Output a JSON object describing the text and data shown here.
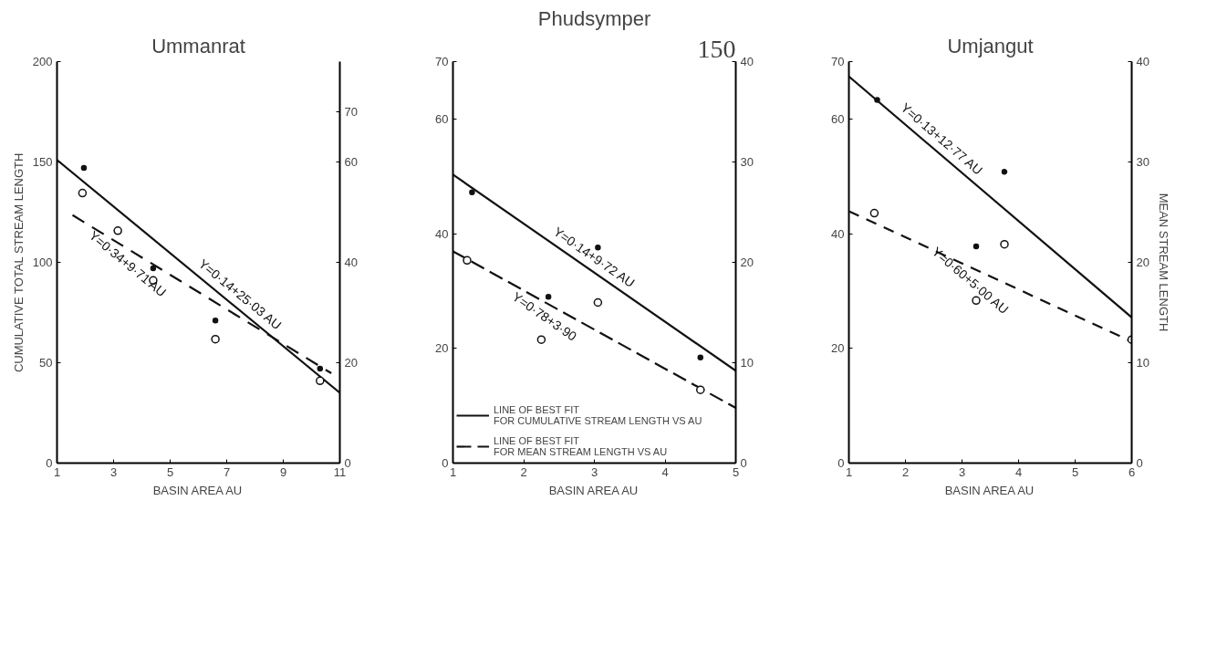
{
  "chart_data": [
    {
      "type": "scatter",
      "title": "Ummanrat",
      "xlabel": "BASIN AREA AU",
      "ylabel": "CUMULATIVE TOTAL STREAM LENGTH",
      "xlim": [
        1,
        11
      ],
      "xticks": [
        1,
        3,
        5,
        7,
        9,
        11
      ],
      "ylim": [
        0,
        200
      ],
      "yticks": [
        0,
        50,
        100,
        150,
        200
      ],
      "y2lim": [
        0,
        80
      ],
      "y2ticks": [
        0,
        20,
        40,
        60,
        70
      ],
      "grid": false,
      "legend": false,
      "annotations": [
        {
          "text": "Y=0·14+25·03 AU",
          "x": 7.2,
          "y": 79.1
        },
        {
          "text": "Y=0·34+9·71 AU",
          "x": 3.8,
          "y": 104.1
        }
      ],
      "series": [
        {
          "type": "line",
          "x": [
            1,
            11
          ],
          "values": [
            151,
            35
          ],
          "color": "#111111",
          "line_style": "solid",
          "marker": "none"
        },
        {
          "type": "line",
          "axis": "y2",
          "x": [
            1.55,
            10.7
          ],
          "values": [
            49.4,
            17.9
          ],
          "color": "#111111",
          "line_style": "dashed",
          "marker": "none"
        },
        {
          "type": "scatter",
          "x": [
            1.95,
            4.4,
            6.6,
            10.3
          ],
          "values": [
            147,
            97,
            71,
            47
          ],
          "color": "#111111",
          "marker": "circle"
        },
        {
          "type": "scatter",
          "axis": "y2",
          "x": [
            1.9,
            3.15,
            4.4,
            6.6,
            10.3
          ],
          "values": [
            53.8,
            46.3,
            36.4,
            24.7,
            16.4
          ],
          "color": "#111111",
          "marker": "circle"
        }
      ]
    },
    {
      "type": "scatter",
      "title": "Phudsymper",
      "xlabel": "BASIN AREA AU",
      "xlim": [
        1,
        5
      ],
      "xticks": [
        1,
        2,
        3,
        4,
        5
      ],
      "ylim": [
        0,
        70
      ],
      "yticks": [
        0,
        20,
        40,
        60,
        70
      ],
      "y2lim": [
        0,
        40
      ],
      "y2ticks": [
        0,
        10,
        20,
        30,
        40
      ],
      "grid": false,
      "legend": "bottom left",
      "annotations": [
        "150",
        {
          "text": "Y=0·14+9·72 AU",
          "x": 2.9,
          "y": 34.05
        },
        {
          "text": "Y=0·78+3·90",
          "x": 2.4,
          "y": 27.4
        }
      ],
      "series": [
        {
          "type": "line",
          "name": "LINE OF BEST FIT FOR CUMULATIVE STREAM LENGTH VS AU",
          "x": [
            1,
            5
          ],
          "values": [
            50.3,
            16.1
          ],
          "color": "#111111",
          "line_style": "solid",
          "marker": "none"
        },
        {
          "type": "line",
          "name": "LINE OF BEST FIT FOR MEAN STREAM LENGTH VS AU",
          "axis": "y2",
          "x": [
            1,
            5
          ],
          "values": [
            21.1,
            5.5
          ],
          "color": "#111111",
          "line_style": "dashed",
          "marker": "none"
        },
        {
          "type": "scatter",
          "x": [
            1.27,
            2.35,
            3.05,
            4.5
          ],
          "values": [
            47.2,
            29,
            37.6,
            18.4
          ],
          "color": "#111111",
          "marker": "circle"
        },
        {
          "type": "scatter",
          "axis": "y2",
          "x": [
            1.2,
            2.25,
            3.05,
            4.5
          ],
          "values": [
            20.2,
            12.3,
            16,
            7.3
          ],
          "color": "#111111",
          "marker": "circle"
        }
      ]
    },
    {
      "type": "scatter",
      "title": "Umjangut",
      "xlabel": "BASIN AREA AU",
      "y2label": "MEAN STREAM LENGTH",
      "xlim": [
        1,
        6
      ],
      "xticks": [
        1,
        2,
        3,
        4,
        5,
        6
      ],
      "ylim": [
        0,
        70
      ],
      "yticks": [
        0,
        20,
        40,
        60,
        70
      ],
      "y2lim": [
        0,
        40
      ],
      "y2ticks": [
        0,
        10,
        20,
        30,
        40
      ],
      "grid": false,
      "legend": false,
      "annotations": [
        {
          "text": "Y=0·13+12·77 AU",
          "x": 2.5,
          "y": 54.8
        },
        {
          "text": "Y=0·60+5·00 AU",
          "x": 3.3,
          "y": 33.5
        }
      ],
      "series": [
        {
          "type": "line",
          "x": [
            1,
            6
          ],
          "values": [
            67.4,
            25.4
          ],
          "color": "#111111",
          "line_style": "solid",
          "marker": "none"
        },
        {
          "type": "line",
          "axis": "y2",
          "x": [
            1,
            6
          ],
          "values": [
            25.1,
            12.1
          ],
          "color": "#111111",
          "line_style": "dashed",
          "marker": "none"
        },
        {
          "type": "scatter",
          "x": [
            1.5,
            3.25,
            3.75
          ],
          "values": [
            63.3,
            37.8,
            50.8
          ],
          "color": "#111111",
          "marker": "circle"
        },
        {
          "type": "scatter",
          "axis": "y2",
          "x": [
            1.45,
            3.25,
            3.75,
            6
          ],
          "values": [
            24.9,
            16.2,
            21.8,
            12.3
          ],
          "color": "#111111",
          "marker": "circle"
        }
      ]
    }
  ]
}
